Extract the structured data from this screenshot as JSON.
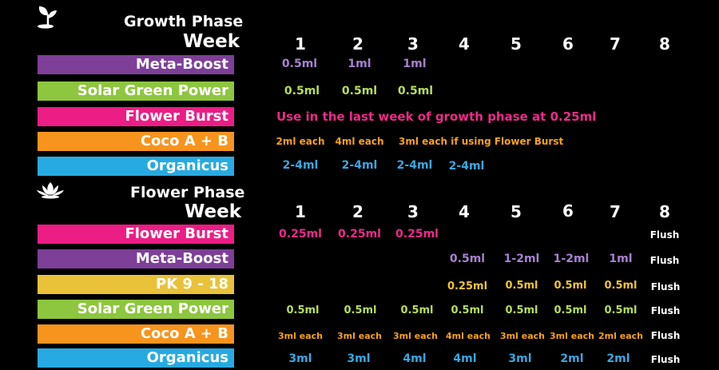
{
  "colors": {
    "purple": "#7d3f98",
    "green": "#8dc63f",
    "pink": "#ec1d85",
    "orange": "#f7941d",
    "blue": "#27aae1",
    "yellow": "#e9c23a",
    "purple_text": "#a682d1",
    "green_text": "#b7df5a",
    "pink_text": "#ee2a8a",
    "orange_text": "#f7a21b",
    "blue_text": "#3aa7e0",
    "yellow_text": "#f2c62f"
  },
  "growth": {
    "icon": "sprout-icon",
    "title": "Growth Phase",
    "week_label": "Week",
    "weeks": [
      "1",
      "2",
      "3",
      "4",
      "5",
      "6",
      "7",
      "8"
    ],
    "meta_boost": {
      "label": "Meta-Boost",
      "values": [
        "0.5ml",
        "1ml",
        "1ml"
      ]
    },
    "solar_green": {
      "label": "Solar Green Power",
      "values": [
        "0.5ml",
        "0.5ml",
        "0.5ml"
      ]
    },
    "flower_burst": {
      "label": "Flower Burst",
      "note": "Use in the last week of growth phase at 0.25ml"
    },
    "coco": {
      "label": "Coco A + B",
      "values": [
        "2ml each",
        "4ml each"
      ],
      "note": "3ml each if using Flower Burst"
    },
    "organicus": {
      "label": "Organicus",
      "values": [
        "2-4ml",
        "2-4ml",
        "2-4ml",
        "2-4ml"
      ]
    }
  },
  "flower": {
    "icon": "lotus-icon",
    "title": "Flower Phase",
    "week_label": "Week",
    "weeks": [
      "1",
      "2",
      "3",
      "4",
      "5",
      "6",
      "7",
      "8"
    ],
    "flower_burst": {
      "label": "Flower Burst",
      "values": [
        "0.25ml",
        "0.25ml",
        "0.25ml"
      ],
      "flush": "Flush"
    },
    "meta_boost": {
      "label": "Meta-Boost",
      "values": [
        "0.5ml",
        "1-2ml",
        "1-2ml",
        "1ml"
      ],
      "flush": "Flush"
    },
    "pk": {
      "label": "PK  9 - 18",
      "values": [
        "0.25ml",
        "0.5ml",
        "0.5ml",
        "0.5ml"
      ],
      "flush": "Flush"
    },
    "solar_green": {
      "label": "Solar Green Power",
      "values": [
        "0.5ml",
        "0.5ml",
        "0.5ml",
        "0.5ml",
        "0.5ml",
        "0.5ml",
        "0.5ml"
      ],
      "flush": "Flush"
    },
    "coco": {
      "label": "Coco A + B",
      "values": [
        "3ml each",
        "3ml each",
        "3ml each",
        "4ml each",
        "3ml each",
        "3ml each",
        "2ml each"
      ],
      "flush": "Flush"
    },
    "organicus": {
      "label": "Organicus",
      "values": [
        "3ml",
        "3ml",
        "4ml",
        "4ml",
        "3ml",
        "2ml",
        "2ml"
      ],
      "flush": "Flush"
    }
  }
}
